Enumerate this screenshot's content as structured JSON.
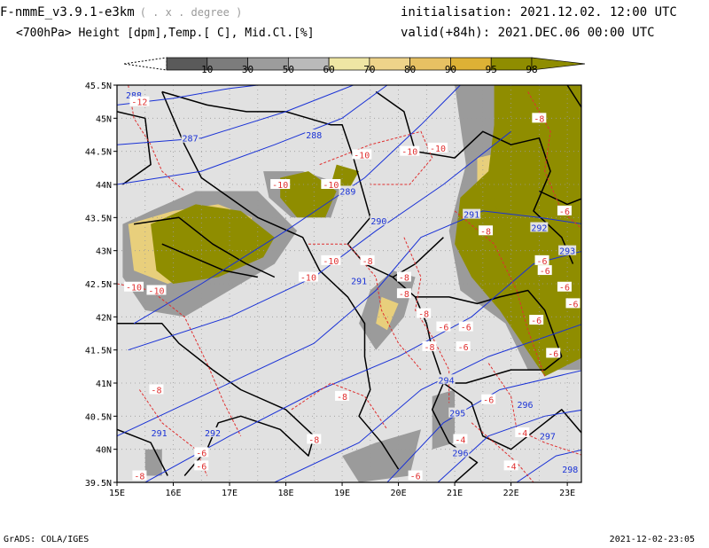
{
  "header": {
    "model": "F-nmmE_v3.9.1-e3km",
    "unit_hint": "( . x . degree )",
    "variables": "<700hPa> Height [dpm],Temp.[ C], Mid.Cl.[%]",
    "initialisation": "initialisation: 2021.12.02.  12:00 UTC",
    "valid": "valid(+84h): 2021.DEC.06 00:00 UTC"
  },
  "colorbar": {
    "labels": [
      "10",
      "30",
      "50",
      "60",
      "70",
      "80",
      "90",
      "95",
      "98"
    ],
    "colors": [
      "#5a5a5a",
      "#7c7c7c",
      "#9c9c9c",
      "#bababa",
      "#efe6a4",
      "#eed38a",
      "#e7c163",
      "#ddb135",
      "#8f8d00"
    ]
  },
  "map": {
    "lat_labels": [
      "45.5N",
      "45N",
      "44.5N",
      "44N",
      "43.5N",
      "43N",
      "42.5N",
      "42N",
      "41.5N",
      "41N",
      "40.5N",
      "40N",
      "39.5N"
    ],
    "lon_labels": [
      "15E",
      "16E",
      "17E",
      "18E",
      "19E",
      "20E",
      "21E",
      "22E",
      "23E"
    ],
    "colors": {
      "land_bg": "#e1e1e1",
      "cloud_high": "#8f8d00",
      "cloud_mid": "#e8cf7c",
      "cloud_low": "#ece3a8",
      "cloud_grey": "#9b9b9b",
      "height_contour": "#1a32d6",
      "temp_contour": "#e03030",
      "border": "#000000"
    },
    "height_labels": [
      {
        "text": "287",
        "lon": 16.3,
        "lat": 44.7
      },
      {
        "text": "288",
        "lon": 18.5,
        "lat": 44.75
      },
      {
        "text": "288",
        "lon": 15.3,
        "lat": 45.35
      },
      {
        "text": "289",
        "lon": 19.1,
        "lat": 43.9
      },
      {
        "text": "290",
        "lon": 19.65,
        "lat": 43.45
      },
      {
        "text": "291",
        "lon": 19.3,
        "lat": 42.55
      },
      {
        "text": "291",
        "lon": 21.3,
        "lat": 43.55
      },
      {
        "text": "292",
        "lon": 22.5,
        "lat": 43.35
      },
      {
        "text": "293",
        "lon": 23.0,
        "lat": 43.0
      },
      {
        "text": "294",
        "lon": 20.85,
        "lat": 41.05
      },
      {
        "text": "295",
        "lon": 21.05,
        "lat": 40.55
      },
      {
        "text": "296",
        "lon": 22.25,
        "lat": 40.68
      },
      {
        "text": "296",
        "lon": 21.1,
        "lat": 39.95
      },
      {
        "text": "297",
        "lon": 22.65,
        "lat": 40.2
      },
      {
        "text": "298",
        "lon": 23.05,
        "lat": 39.7
      },
      {
        "text": "291",
        "lon": 15.75,
        "lat": 40.25
      },
      {
        "text": "292",
        "lon": 16.7,
        "lat": 40.25
      }
    ],
    "temp_labels": [
      {
        "text": "-12",
        "lon": 15.4,
        "lat": 45.25
      },
      {
        "text": "-10",
        "lon": 18.8,
        "lat": 44.0
      },
      {
        "text": "-10",
        "lon": 19.35,
        "lat": 44.45
      },
      {
        "text": "-10",
        "lon": 20.2,
        "lat": 44.5
      },
      {
        "text": "-10",
        "lon": 20.7,
        "lat": 44.55
      },
      {
        "text": "-10",
        "lon": 17.9,
        "lat": 44.0
      },
      {
        "text": "-10",
        "lon": 18.8,
        "lat": 42.85
      },
      {
        "text": "-10",
        "lon": 18.4,
        "lat": 42.6
      },
      {
        "text": "-10",
        "lon": 15.3,
        "lat": 42.45
      },
      {
        "text": "-10",
        "lon": 15.7,
        "lat": 42.4
      },
      {
        "text": "-8",
        "lon": 19.45,
        "lat": 42.85
      },
      {
        "text": "-8",
        "lon": 20.1,
        "lat": 42.6
      },
      {
        "text": "-8",
        "lon": 20.1,
        "lat": 42.35
      },
      {
        "text": "-8",
        "lon": 20.45,
        "lat": 42.05
      },
      {
        "text": "-8",
        "lon": 20.55,
        "lat": 41.55
      },
      {
        "text": "-8",
        "lon": 21.55,
        "lat": 43.3
      },
      {
        "text": "-8",
        "lon": 22.5,
        "lat": 45.0
      },
      {
        "text": "-8",
        "lon": 15.7,
        "lat": 40.9
      },
      {
        "text": "-8",
        "lon": 19.0,
        "lat": 40.8
      },
      {
        "text": "-8",
        "lon": 18.5,
        "lat": 40.15
      },
      {
        "text": "-6",
        "lon": 22.95,
        "lat": 43.6
      },
      {
        "text": "-6",
        "lon": 22.55,
        "lat": 42.85
      },
      {
        "text": "-6",
        "lon": 22.6,
        "lat": 42.7
      },
      {
        "text": "-6",
        "lon": 22.95,
        "lat": 42.45
      },
      {
        "text": "-6",
        "lon": 23.1,
        "lat": 42.2
      },
      {
        "text": "-6",
        "lon": 22.45,
        "lat": 41.95
      },
      {
        "text": "-6",
        "lon": 22.75,
        "lat": 41.45
      },
      {
        "text": "-6",
        "lon": 21.2,
        "lat": 41.85
      },
      {
        "text": "-6",
        "lon": 20.8,
        "lat": 41.85
      },
      {
        "text": "-6",
        "lon": 21.15,
        "lat": 41.55
      },
      {
        "text": "-6",
        "lon": 21.6,
        "lat": 40.75
      },
      {
        "text": "-6",
        "lon": 16.5,
        "lat": 39.95
      },
      {
        "text": "-6",
        "lon": 16.5,
        "lat": 39.75
      },
      {
        "text": "-6",
        "lon": 20.3,
        "lat": 39.6
      },
      {
        "text": "-4",
        "lon": 21.1,
        "lat": 40.15
      },
      {
        "text": "-4",
        "lon": 22.2,
        "lat": 40.25
      },
      {
        "text": "-4",
        "lon": 22.0,
        "lat": 39.75
      },
      {
        "text": "-8",
        "lon": 15.4,
        "lat": 39.6
      }
    ]
  },
  "footer": {
    "left": "GrADS: COLA/IGES",
    "right": "2021-12-02-23:05"
  }
}
